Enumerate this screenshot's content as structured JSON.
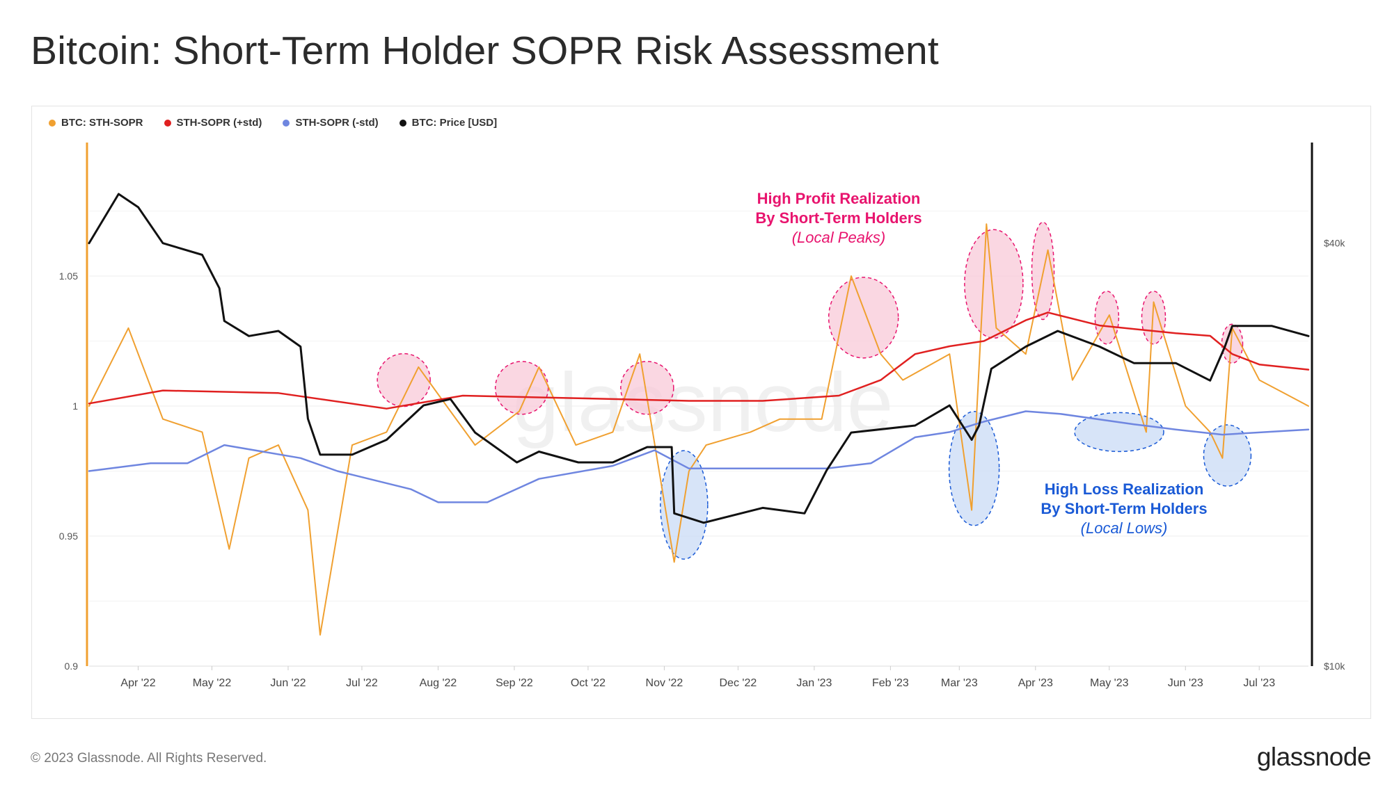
{
  "title": "Bitcoin: Short-Term Holder SOPR Risk Assessment",
  "footer": "© 2023 Glassnode. All Rights Reserved.",
  "brand": "glassnode",
  "watermark": "glassnode",
  "legend": [
    {
      "label": "BTC: STH-SOPR",
      "color": "#f0a030"
    },
    {
      "label": "STH-SOPR (+std)",
      "color": "#e02020"
    },
    {
      "label": "STH-SOPR (-std)",
      "color": "#6f86e0"
    },
    {
      "label": "BTC: Price [USD]",
      "color": "#111111"
    }
  ],
  "annotations": {
    "peaks": {
      "line1": "High Profit Realization",
      "line2": "By Short-Term Holders",
      "line3": "(Local Peaks)",
      "color": "#e8146e"
    },
    "lows": {
      "line1": "High Loss Realization",
      "line2": "By Short-Term Holders",
      "line3": "(Local Lows)",
      "color": "#1a5ad6"
    }
  },
  "chart_data": {
    "type": "line",
    "title": "Bitcoin: Short-Term Holder SOPR Risk Assessment",
    "x_ticks": [
      "Apr '22",
      "May '22",
      "Jun '22",
      "Jul '22",
      "Aug '22",
      "Sep '22",
      "Oct '22",
      "Nov '22",
      "Dec '22",
      "Jan '23",
      "Feb '23",
      "Mar '23",
      "Apr '23",
      "May '23",
      "Jun '23",
      "Jul '23"
    ],
    "x_range": [
      "2022-03-16",
      "2023-07-25"
    ],
    "y_left": {
      "ticks": [
        0.9,
        0.95,
        1,
        1.05
      ],
      "tick_labels": [
        "0.9",
        "0.95",
        "1",
        "1.05"
      ],
      "range": [
        0.9,
        1.1
      ],
      "scale": "linear"
    },
    "y_right": {
      "ticks": [
        10000,
        40000
      ],
      "tick_labels": [
        "$10k",
        "$40k"
      ],
      "range": [
        10000,
        55000
      ],
      "scale": "log"
    },
    "grid": "horizontal",
    "legend_position": "top-left",
    "series": [
      {
        "name": "BTC: STH-SOPR",
        "color": "#f0a030",
        "axis": "left",
        "x": [
          "2022-03-16",
          "2022-04-01",
          "2022-04-15",
          "2022-05-01",
          "2022-05-12",
          "2022-05-20",
          "2022-06-01",
          "2022-06-13",
          "2022-06-18",
          "2022-07-01",
          "2022-07-15",
          "2022-07-28",
          "2022-08-10",
          "2022-08-20",
          "2022-09-07",
          "2022-09-15",
          "2022-09-30",
          "2022-10-15",
          "2022-10-26",
          "2022-11-09",
          "2022-11-15",
          "2022-11-22",
          "2022-12-10",
          "2022-12-22",
          "2023-01-08",
          "2023-01-20",
          "2023-02-01",
          "2023-02-10",
          "2023-03-01",
          "2023-03-10",
          "2023-03-16",
          "2023-03-20",
          "2023-04-01",
          "2023-04-10",
          "2023-04-20",
          "2023-05-05",
          "2023-05-20",
          "2023-05-23",
          "2023-06-05",
          "2023-06-15",
          "2023-06-20",
          "2023-06-24",
          "2023-07-05",
          "2023-07-15",
          "2023-07-25"
        ],
        "values": [
          1.0,
          1.03,
          0.995,
          0.99,
          0.945,
          0.98,
          0.985,
          0.96,
          0.912,
          0.985,
          0.99,
          1.015,
          0.998,
          0.985,
          0.998,
          1.015,
          0.985,
          0.99,
          1.02,
          0.94,
          0.975,
          0.985,
          0.99,
          0.995,
          0.995,
          1.05,
          1.02,
          1.01,
          1.02,
          0.96,
          1.07,
          1.03,
          1.02,
          1.06,
          1.01,
          1.035,
          0.99,
          1.04,
          1.0,
          0.99,
          0.98,
          1.03,
          1.01,
          1.005,
          1.0
        ]
      },
      {
        "name": "STH-SOPR (+std)",
        "color": "#e02020",
        "axis": "left",
        "x": [
          "2022-03-16",
          "2022-04-15",
          "2022-06-01",
          "2022-07-15",
          "2022-08-15",
          "2022-10-01",
          "2022-11-15",
          "2022-12-15",
          "2023-01-15",
          "2023-02-01",
          "2023-02-15",
          "2023-03-01",
          "2023-03-15",
          "2023-04-01",
          "2023-04-10",
          "2023-05-01",
          "2023-06-01",
          "2023-06-15",
          "2023-06-24",
          "2023-07-05",
          "2023-07-25"
        ],
        "values": [
          1.001,
          1.006,
          1.005,
          0.999,
          1.004,
          1.003,
          1.002,
          1.002,
          1.004,
          1.01,
          1.02,
          1.023,
          1.025,
          1.033,
          1.036,
          1.031,
          1.028,
          1.027,
          1.02,
          1.016,
          1.014
        ]
      },
      {
        "name": "STH-SOPR (-std)",
        "color": "#6f86e0",
        "axis": "left",
        "x": [
          "2022-03-16",
          "2022-04-10",
          "2022-04-25",
          "2022-05-10",
          "2022-06-10",
          "2022-06-25",
          "2022-07-25",
          "2022-08-05",
          "2022-08-25",
          "2022-09-15",
          "2022-10-15",
          "2022-11-01",
          "2022-11-15",
          "2022-12-15",
          "2023-01-10",
          "2023-01-28",
          "2023-02-15",
          "2023-03-01",
          "2023-03-15",
          "2023-04-01",
          "2023-04-15",
          "2023-05-15",
          "2023-06-01",
          "2023-06-20",
          "2023-07-25"
        ],
        "values": [
          0.975,
          0.978,
          0.978,
          0.985,
          0.98,
          0.975,
          0.968,
          0.963,
          0.963,
          0.972,
          0.977,
          0.983,
          0.976,
          0.976,
          0.976,
          0.978,
          0.988,
          0.99,
          0.994,
          0.998,
          0.997,
          0.993,
          0.991,
          0.989,
          0.991
        ]
      },
      {
        "name": "BTC: Price [USD]",
        "color": "#111111",
        "axis": "right",
        "x": [
          "2022-03-16",
          "2022-03-28",
          "2022-04-05",
          "2022-04-15",
          "2022-05-01",
          "2022-05-08",
          "2022-05-10",
          "2022-05-20",
          "2022-06-01",
          "2022-06-10",
          "2022-06-13",
          "2022-06-18",
          "2022-07-01",
          "2022-07-15",
          "2022-07-30",
          "2022-08-10",
          "2022-08-20",
          "2022-09-06",
          "2022-09-15",
          "2022-10-01",
          "2022-10-15",
          "2022-10-29",
          "2022-11-08",
          "2022-11-09",
          "2022-11-21",
          "2022-12-15",
          "2023-01-01",
          "2023-01-10",
          "2023-01-20",
          "2023-02-15",
          "2023-03-01",
          "2023-03-10",
          "2023-03-13",
          "2023-03-18",
          "2023-04-01",
          "2023-04-14",
          "2023-05-01",
          "2023-05-15",
          "2023-06-01",
          "2023-06-15",
          "2023-06-21",
          "2023-06-24",
          "2023-07-10",
          "2023-07-25"
        ],
        "values": [
          40000,
          47000,
          45000,
          40000,
          38500,
          34500,
          31000,
          29500,
          30000,
          28500,
          22500,
          20000,
          20000,
          21000,
          23500,
          24000,
          21500,
          19500,
          20200,
          19500,
          19500,
          20500,
          20500,
          16500,
          16000,
          16800,
          16500,
          19000,
          21500,
          22000,
          23500,
          21000,
          22000,
          26500,
          28500,
          30000,
          28500,
          27000,
          27000,
          25500,
          28500,
          30500,
          30500,
          29500
        ]
      }
    ]
  }
}
